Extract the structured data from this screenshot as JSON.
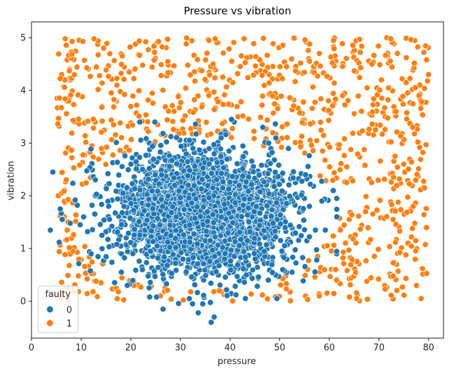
{
  "chart_data": {
    "type": "scatter",
    "title": "Pressure vs vibration",
    "xlabel": "pressure",
    "ylabel": "vibration",
    "xlim": [
      0,
      83
    ],
    "ylim": [
      -0.7,
      5.3
    ],
    "xticks": [
      "0",
      "10",
      "20",
      "30",
      "40",
      "50",
      "60",
      "70",
      "80"
    ],
    "yticks": [
      "0",
      "1",
      "2",
      "3",
      "4",
      "5"
    ],
    "grid": false,
    "legend": {
      "title": "faulty",
      "placement": "lower-left",
      "entries": [
        "0",
        "1"
      ]
    },
    "series": [
      {
        "name": "0",
        "color": "#1f77b4",
        "distribution": {
          "x_center": 35,
          "x_spread": 8.5,
          "y_center": 1.65,
          "y_spread": 0.55,
          "approx_count": 3000
        },
        "points": [
          [
            3.8,
            1.35
          ],
          [
            4.3,
            2.45
          ],
          [
            5.8,
            1.75
          ],
          [
            6.2,
            1.55
          ],
          [
            7.8,
            1.48
          ],
          [
            8.8,
            1.92
          ],
          [
            9.8,
            1.45
          ],
          [
            10.5,
            1.6
          ],
          [
            11.3,
            1.32
          ],
          [
            12.2,
            1.82
          ],
          [
            13.1,
            2.03
          ],
          [
            14.2,
            1.25
          ],
          [
            15.4,
            2.42
          ],
          [
            17.2,
            1.08
          ],
          [
            18.1,
            0.55
          ],
          [
            19.3,
            0.3
          ],
          [
            20.3,
            2.72
          ],
          [
            23.8,
            0.08
          ],
          [
            25.2,
            0.08
          ],
          [
            26.5,
            -0.15
          ],
          [
            27.2,
            0.33
          ],
          [
            31.8,
            0.05
          ],
          [
            33.6,
            -0.22
          ],
          [
            34.5,
            -0.05
          ],
          [
            36.2,
            -0.4
          ],
          [
            36.8,
            -0.3
          ],
          [
            38.2,
            3.1
          ],
          [
            39.8,
            2.85
          ],
          [
            40.3,
            3.45
          ],
          [
            41.2,
            0.12
          ],
          [
            43.1,
            0.05
          ],
          [
            46.6,
            3.3
          ],
          [
            47.8,
            3.0
          ],
          [
            50.6,
            0.6
          ],
          [
            52.5,
            0.55
          ],
          [
            55.2,
            2.4
          ],
          [
            56.0,
            1.8
          ],
          [
            57.2,
            1.35
          ],
          [
            58.5,
            1.9
          ],
          [
            59.2,
            1.35
          ],
          [
            60.8,
            2.1
          ],
          [
            61.5,
            1.95
          ]
        ]
      },
      {
        "name": "1",
        "color": "#ff7f0e",
        "distribution": {
          "x_min": 5,
          "x_max": 80,
          "y_min": 0,
          "y_max": 5,
          "excluded_ellipse": {
            "x_center": 35,
            "y_center": 1.65,
            "x_radius": 26,
            "y_radius": 1.45
          },
          "approx_count": 850
        },
        "points": [
          [
            6.8,
            4.98
          ],
          [
            8.2,
            4.93
          ],
          [
            12.6,
            4.98
          ],
          [
            37.0,
            4.98
          ],
          [
            55.1,
            4.96
          ],
          [
            66.1,
            4.97
          ],
          [
            72.4,
            4.98
          ],
          [
            79.6,
            4.58
          ],
          [
            80.0,
            4.3
          ],
          [
            78.5,
            0.05
          ],
          [
            65.5,
            0.05
          ],
          [
            58.0,
            0.1
          ],
          [
            7.2,
            1.35
          ],
          [
            5.8,
            1.62
          ],
          [
            12.4,
            0.18
          ],
          [
            75.0,
            2.6
          ],
          [
            76.8,
            3.3
          ],
          [
            79.2,
            2.15
          ],
          [
            67.3,
            1.7
          ],
          [
            63.5,
            2.55
          ]
        ]
      }
    ]
  }
}
